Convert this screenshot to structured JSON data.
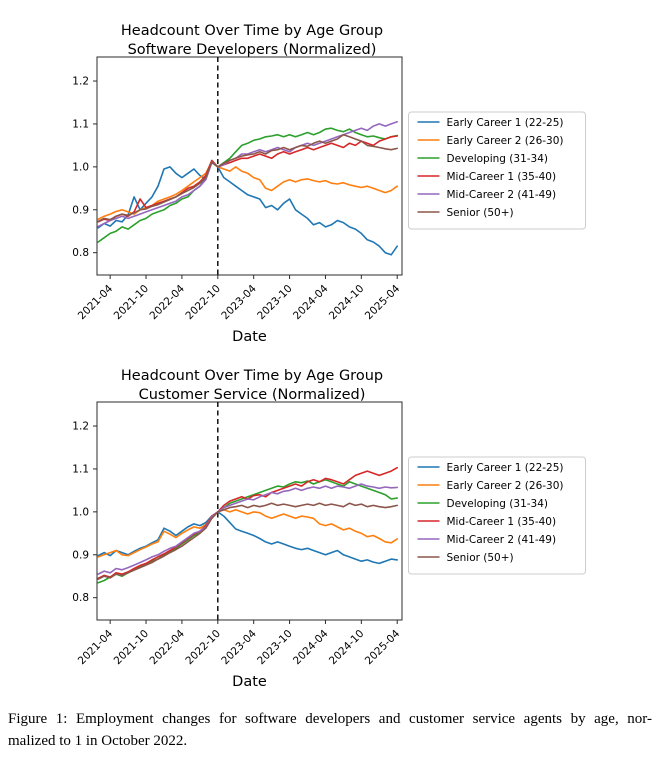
{
  "page": {
    "background": "#ffffff"
  },
  "caption": {
    "line1": "Figure 1: Employment changes for software developers and customer service agents by age, nor-",
    "line2": "malized to 1 in October 2022."
  },
  "palette": {
    "blue": "#1f77b4",
    "orange": "#ff7f0e",
    "green": "#2ca02c",
    "red": "#d62728",
    "purple": "#9467bd",
    "brown": "#8c564b"
  },
  "chart_data": [
    {
      "type": "line",
      "title": "Headcount Over Time by Age Group",
      "subtitle": "Software Developers (Normalized)",
      "xlabel": "Date",
      "x_unit": "months since 2021-01, data monthly",
      "x_tick_months": [
        3,
        9,
        15,
        21,
        27,
        33,
        39,
        45,
        51
      ],
      "x_tick_labels": [
        "2021-04",
        "2021-10",
        "2022-04",
        "2022-10",
        "2023-04",
        "2023-10",
        "2024-04",
        "2024-10",
        "2025-04"
      ],
      "y_ticks": [
        0.8,
        0.9,
        1.0,
        1.1,
        1.2
      ],
      "ylim": [
        0.748,
        1.256
      ],
      "xlim_months": [
        0.8,
        51.8
      ],
      "x_start_month": 1,
      "dashed_vline_month": 21,
      "grid": false,
      "legend_position": "outside-right",
      "series": [
        {
          "name": "Early Career 1 (22-25)",
          "color": "#1f77b4",
          "values": [
            0.858,
            0.868,
            0.862,
            0.875,
            0.872,
            0.888,
            0.93,
            0.9,
            0.915,
            0.93,
            0.955,
            0.995,
            1.0,
            0.985,
            0.975,
            0.985,
            0.995,
            0.98,
            0.972,
            1.012,
            1.0,
            0.975,
            0.965,
            0.955,
            0.945,
            0.935,
            0.93,
            0.925,
            0.905,
            0.91,
            0.9,
            0.915,
            0.925,
            0.9,
            0.89,
            0.88,
            0.865,
            0.87,
            0.86,
            0.865,
            0.875,
            0.87,
            0.86,
            0.855,
            0.845,
            0.83,
            0.825,
            0.815,
            0.8,
            0.795,
            0.815
          ]
        },
        {
          "name": "Early Career 2 (26-30)",
          "color": "#ff7f0e",
          "values": [
            0.878,
            0.885,
            0.89,
            0.896,
            0.9,
            0.895,
            0.89,
            0.9,
            0.905,
            0.91,
            0.92,
            0.925,
            0.93,
            0.936,
            0.945,
            0.955,
            0.965,
            0.975,
            0.985,
            1.012,
            1.0,
            0.995,
            0.99,
            1.0,
            0.99,
            0.985,
            0.975,
            0.97,
            0.95,
            0.945,
            0.955,
            0.965,
            0.97,
            0.965,
            0.97,
            0.972,
            0.968,
            0.965,
            0.968,
            0.962,
            0.96,
            0.963,
            0.958,
            0.955,
            0.952,
            0.955,
            0.95,
            0.945,
            0.94,
            0.945,
            0.955
          ]
        },
        {
          "name": "Developing (31-34)",
          "color": "#2ca02c",
          "values": [
            0.825,
            0.835,
            0.845,
            0.85,
            0.86,
            0.855,
            0.865,
            0.875,
            0.88,
            0.89,
            0.895,
            0.9,
            0.91,
            0.915,
            0.925,
            0.93,
            0.945,
            0.955,
            0.975,
            1.01,
            1.0,
            1.01,
            1.02,
            1.035,
            1.05,
            1.055,
            1.062,
            1.065,
            1.07,
            1.072,
            1.075,
            1.07,
            1.075,
            1.07,
            1.075,
            1.08,
            1.075,
            1.08,
            1.088,
            1.09,
            1.085,
            1.082,
            1.088,
            1.08,
            1.075,
            1.07,
            1.072,
            1.068,
            1.065,
            1.07,
            1.073
          ]
        },
        {
          "name": "Mid-Career 1 (35-40)",
          "color": "#d62728",
          "values": [
            0.872,
            0.878,
            0.875,
            0.885,
            0.89,
            0.885,
            0.895,
            0.925,
            0.905,
            0.91,
            0.915,
            0.92,
            0.925,
            0.93,
            0.94,
            0.95,
            0.955,
            0.965,
            0.98,
            1.015,
            1.0,
            1.005,
            1.01,
            1.015,
            1.02,
            1.02,
            1.025,
            1.03,
            1.025,
            1.02,
            1.03,
            1.035,
            1.03,
            1.035,
            1.04,
            1.045,
            1.04,
            1.045,
            1.05,
            1.055,
            1.05,
            1.045,
            1.055,
            1.05,
            1.06,
            1.055,
            1.05,
            1.06,
            1.065,
            1.07,
            1.072
          ]
        },
        {
          "name": "Mid-Career 2 (41-49)",
          "color": "#9467bd",
          "values": [
            0.861,
            0.868,
            0.875,
            0.88,
            0.885,
            0.88,
            0.885,
            0.89,
            0.895,
            0.9,
            0.905,
            0.91,
            0.915,
            0.92,
            0.93,
            0.935,
            0.945,
            0.955,
            0.97,
            1.01,
            1.0,
            1.005,
            1.015,
            1.02,
            1.03,
            1.03,
            1.035,
            1.04,
            1.035,
            1.04,
            1.045,
            1.04,
            1.035,
            1.045,
            1.05,
            1.055,
            1.05,
            1.055,
            1.06,
            1.065,
            1.07,
            1.075,
            1.08,
            1.085,
            1.09,
            1.085,
            1.095,
            1.1,
            1.095,
            1.1,
            1.105
          ]
        },
        {
          "name": "Senior (50+)",
          "color": "#8c564b",
          "values": [
            0.873,
            0.88,
            0.877,
            0.885,
            0.89,
            0.887,
            0.893,
            0.9,
            0.902,
            0.908,
            0.912,
            0.918,
            0.924,
            0.93,
            0.938,
            0.945,
            0.952,
            0.962,
            0.975,
            1.012,
            1.0,
            1.008,
            1.015,
            1.02,
            1.025,
            1.028,
            1.03,
            1.035,
            1.03,
            1.038,
            1.04,
            1.045,
            1.04,
            1.045,
            1.05,
            1.048,
            1.055,
            1.06,
            1.055,
            1.06,
            1.065,
            1.075,
            1.07,
            1.065,
            1.06,
            1.05,
            1.048,
            1.045,
            1.042,
            1.04,
            1.043
          ]
        }
      ]
    },
    {
      "type": "line",
      "title": "Headcount Over Time by Age Group",
      "subtitle": "Customer Service (Normalized)",
      "xlabel": "Date",
      "x_unit": "months since 2021-01, data monthly",
      "x_tick_months": [
        3,
        9,
        15,
        21,
        27,
        33,
        39,
        45,
        51
      ],
      "x_tick_labels": [
        "2021-04",
        "2021-10",
        "2022-04",
        "2022-10",
        "2023-04",
        "2023-10",
        "2024-04",
        "2024-10",
        "2025-04"
      ],
      "y_ticks": [
        0.8,
        0.9,
        1.0,
        1.1,
        1.2
      ],
      "ylim": [
        0.748,
        1.256
      ],
      "xlim_months": [
        0.8,
        51.8
      ],
      "x_start_month": 1,
      "dashed_vline_month": 21,
      "grid": false,
      "legend_position": "outside-right",
      "series": [
        {
          "name": "Early Career 1 (22-25)",
          "color": "#1f77b4",
          "values": [
            0.898,
            0.905,
            0.898,
            0.91,
            0.905,
            0.9,
            0.908,
            0.915,
            0.92,
            0.928,
            0.935,
            0.962,
            0.955,
            0.945,
            0.955,
            0.965,
            0.972,
            0.968,
            0.975,
            0.99,
            1.0,
            0.99,
            0.975,
            0.96,
            0.955,
            0.95,
            0.945,
            0.938,
            0.93,
            0.925,
            0.93,
            0.925,
            0.92,
            0.915,
            0.912,
            0.915,
            0.91,
            0.905,
            0.9,
            0.905,
            0.91,
            0.9,
            0.895,
            0.89,
            0.885,
            0.888,
            0.883,
            0.88,
            0.885,
            0.89,
            0.888
          ]
        },
        {
          "name": "Early Career 2 (26-30)",
          "color": "#ff7f0e",
          "values": [
            0.895,
            0.9,
            0.905,
            0.91,
            0.9,
            0.898,
            0.905,
            0.912,
            0.918,
            0.925,
            0.93,
            0.955,
            0.948,
            0.94,
            0.95,
            0.958,
            0.965,
            0.962,
            0.97,
            0.988,
            1.0,
            1.005,
            1.0,
            1.005,
            1.0,
            0.995,
            1.0,
            0.998,
            0.99,
            0.985,
            0.99,
            0.995,
            0.99,
            0.985,
            0.99,
            0.988,
            0.985,
            0.972,
            0.968,
            0.972,
            0.965,
            0.958,
            0.962,
            0.955,
            0.95,
            0.942,
            0.945,
            0.938,
            0.93,
            0.928,
            0.937
          ]
        },
        {
          "name": "Developing (31-34)",
          "color": "#2ca02c",
          "values": [
            0.835,
            0.84,
            0.848,
            0.855,
            0.85,
            0.858,
            0.865,
            0.872,
            0.878,
            0.885,
            0.89,
            0.9,
            0.908,
            0.915,
            0.925,
            0.935,
            0.945,
            0.952,
            0.965,
            0.985,
            1.0,
            1.01,
            1.02,
            1.025,
            1.03,
            1.035,
            1.04,
            1.045,
            1.05,
            1.055,
            1.06,
            1.058,
            1.065,
            1.07,
            1.068,
            1.072,
            1.065,
            1.07,
            1.075,
            1.07,
            1.065,
            1.06,
            1.07,
            1.065,
            1.06,
            1.055,
            1.05,
            1.045,
            1.04,
            1.03,
            1.032
          ]
        },
        {
          "name": "Mid-Career 1 (35-40)",
          "color": "#d62728",
          "values": [
            0.845,
            0.852,
            0.848,
            0.858,
            0.855,
            0.86,
            0.868,
            0.875,
            0.88,
            0.888,
            0.895,
            0.902,
            0.91,
            0.918,
            0.928,
            0.938,
            0.948,
            0.955,
            0.968,
            0.99,
            1.0,
            1.015,
            1.025,
            1.03,
            1.035,
            1.03,
            1.038,
            1.04,
            1.035,
            1.045,
            1.05,
            1.055,
            1.06,
            1.065,
            1.06,
            1.07,
            1.075,
            1.07,
            1.078,
            1.075,
            1.07,
            1.065,
            1.075,
            1.085,
            1.09,
            1.095,
            1.09,
            1.085,
            1.09,
            1.095,
            1.103
          ]
        },
        {
          "name": "Mid-Career 2 (41-49)",
          "color": "#9467bd",
          "values": [
            0.855,
            0.862,
            0.858,
            0.868,
            0.865,
            0.87,
            0.876,
            0.882,
            0.888,
            0.895,
            0.9,
            0.908,
            0.915,
            0.92,
            0.93,
            0.94,
            0.95,
            0.955,
            0.965,
            0.988,
            1.0,
            1.01,
            1.015,
            1.02,
            1.025,
            1.03,
            1.028,
            1.035,
            1.04,
            1.045,
            1.042,
            1.048,
            1.05,
            1.055,
            1.05,
            1.055,
            1.058,
            1.055,
            1.06,
            1.055,
            1.06,
            1.058,
            1.055,
            1.06,
            1.065,
            1.06,
            1.058,
            1.055,
            1.058,
            1.056,
            1.057
          ]
        },
        {
          "name": "Senior (50+)",
          "color": "#8c564b",
          "values": [
            0.843,
            0.85,
            0.846,
            0.855,
            0.852,
            0.858,
            0.864,
            0.87,
            0.876,
            0.882,
            0.89,
            0.897,
            0.905,
            0.912,
            0.92,
            0.93,
            0.94,
            0.95,
            0.962,
            0.985,
            1.0,
            1.005,
            1.01,
            1.012,
            1.015,
            1.01,
            1.015,
            1.012,
            1.015,
            1.02,
            1.015,
            1.018,
            1.015,
            1.012,
            1.015,
            1.018,
            1.015,
            1.02,
            1.015,
            1.018,
            1.015,
            1.012,
            1.02,
            1.015,
            1.018,
            1.012,
            1.015,
            1.012,
            1.01,
            1.012,
            1.015
          ]
        }
      ]
    }
  ]
}
